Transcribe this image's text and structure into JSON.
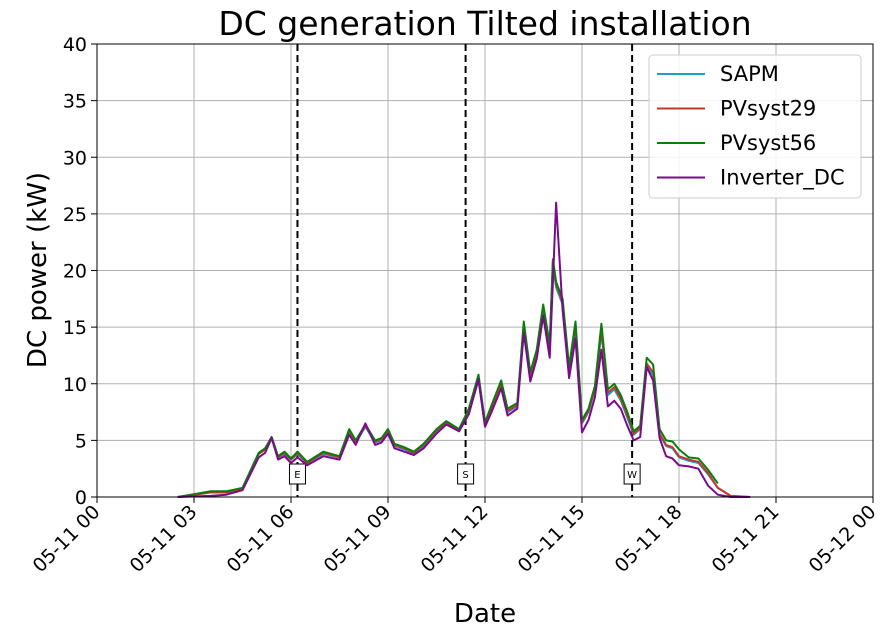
{
  "chart_data": {
    "type": "line",
    "title": "DC generation Tilted installation",
    "xlabel": "Date",
    "ylabel": "DC power (kW)",
    "xlim": [
      "05-11 00",
      "05-12 00"
    ],
    "ylim": [
      0,
      40
    ],
    "x_unit": "hour of day 2024-05-11",
    "xticks": [
      {
        "h": 0,
        "label": "05-11 00"
      },
      {
        "h": 3,
        "label": "05-11 03"
      },
      {
        "h": 6,
        "label": "05-11 06"
      },
      {
        "h": 9,
        "label": "05-11 09"
      },
      {
        "h": 12,
        "label": "05-11 12"
      },
      {
        "h": 15,
        "label": "05-11 15"
      },
      {
        "h": 18,
        "label": "05-11 18"
      },
      {
        "h": 21,
        "label": "05-11 21"
      },
      {
        "h": 24,
        "label": "05-12 00"
      }
    ],
    "yticks": [
      0,
      5,
      10,
      15,
      20,
      25,
      30,
      35,
      40
    ],
    "grid": true,
    "legend_position": "top-right",
    "vlines": [
      {
        "x": 6.2,
        "label": "E"
      },
      {
        "x": 11.4,
        "label": "S"
      },
      {
        "x": 16.55,
        "label": "W"
      }
    ],
    "series": [
      {
        "name": "SAPM",
        "color": "#1f9bd0",
        "x": [
          2.5,
          3.5,
          4.0,
          4.5,
          5.0,
          5.2,
          5.4,
          5.6,
          5.8,
          6.0,
          6.2,
          6.5,
          7.0,
          7.5,
          7.8,
          8.0,
          8.3,
          8.6,
          8.8,
          9.0,
          9.2,
          9.5,
          9.8,
          10.1,
          10.5,
          10.8,
          11.2,
          11.5,
          11.8,
          12.0,
          12.2,
          12.5,
          12.7,
          13.0,
          13.2,
          13.4,
          13.6,
          13.8,
          14.0,
          14.1,
          14.2,
          14.4,
          14.6,
          14.8,
          15.0,
          15.2,
          15.4,
          15.6,
          15.8,
          16.0,
          16.2,
          16.4,
          16.6,
          16.8,
          17.0,
          17.2,
          17.4,
          17.6,
          17.8,
          18.0,
          18.3,
          18.6,
          18.9,
          19.2,
          19.6,
          20.2
        ],
        "y": [
          0.0,
          0.4,
          0.4,
          0.7,
          3.8,
          4.2,
          5.2,
          3.5,
          3.8,
          3.3,
          3.8,
          3.0,
          3.8,
          3.5,
          5.8,
          4.8,
          6.2,
          4.8,
          5.0,
          5.8,
          4.5,
          4.2,
          3.8,
          4.5,
          5.8,
          6.5,
          5.8,
          7.5,
          10.3,
          6.3,
          7.8,
          9.8,
          7.5,
          8.0,
          15.0,
          10.5,
          12.5,
          16.5,
          13.0,
          20.5,
          18.5,
          17.0,
          11.0,
          15.0,
          6.5,
          7.5,
          9.5,
          14.5,
          9.0,
          9.5,
          8.5,
          7.0,
          5.5,
          6.0,
          11.5,
          10.8,
          5.5,
          4.5,
          4.3,
          3.5,
          3.2,
          3.0,
          2.0,
          0.8,
          0.1,
          0.0
        ]
      },
      {
        "name": "PVsyst29",
        "color": "#c0392b",
        "x": [
          2.5,
          3.5,
          4.0,
          4.5,
          5.0,
          5.2,
          5.4,
          5.6,
          5.8,
          6.0,
          6.2,
          6.5,
          7.0,
          7.5,
          7.8,
          8.0,
          8.3,
          8.6,
          8.8,
          9.0,
          9.2,
          9.5,
          9.8,
          10.1,
          10.5,
          10.8,
          11.2,
          11.5,
          11.8,
          12.0,
          12.2,
          12.5,
          12.7,
          13.0,
          13.2,
          13.4,
          13.6,
          13.8,
          14.0,
          14.1,
          14.2,
          14.4,
          14.6,
          14.8,
          15.0,
          15.2,
          15.4,
          15.6,
          15.8,
          16.0,
          16.2,
          16.4,
          16.6,
          16.8,
          17.0,
          17.2,
          17.4,
          17.6,
          17.8,
          18.0,
          18.3,
          18.6,
          18.9,
          19.2,
          19.6,
          20.2
        ],
        "y": [
          0.0,
          0.4,
          0.4,
          0.7,
          3.8,
          4.2,
          5.3,
          3.5,
          3.9,
          3.3,
          3.9,
          3.0,
          3.9,
          3.5,
          5.9,
          4.9,
          6.3,
          4.9,
          5.1,
          5.9,
          4.6,
          4.3,
          3.9,
          4.6,
          5.9,
          6.6,
          5.9,
          7.6,
          10.5,
          6.4,
          7.9,
          10.0,
          7.6,
          8.1,
          15.2,
          10.7,
          12.7,
          16.8,
          13.2,
          20.8,
          18.8,
          17.2,
          11.2,
          15.2,
          6.6,
          7.6,
          9.6,
          14.8,
          9.2,
          9.7,
          8.7,
          7.2,
          5.6,
          6.1,
          11.8,
          11.0,
          5.6,
          4.6,
          4.4,
          3.6,
          3.3,
          3.1,
          2.1,
          0.8,
          0.1,
          0.0
        ]
      },
      {
        "name": "PVsyst56",
        "color": "#0a7d0a",
        "x": [
          2.5,
          3.5,
          4.0,
          4.5,
          5.0,
          5.2,
          5.4,
          5.6,
          5.8,
          6.0,
          6.2,
          6.5,
          7.0,
          7.5,
          7.8,
          8.0,
          8.3,
          8.6,
          8.8,
          9.0,
          9.2,
          9.5,
          9.8,
          10.1,
          10.5,
          10.8,
          11.2,
          11.5,
          11.8,
          12.0,
          12.2,
          12.5,
          12.7,
          13.0,
          13.2,
          13.4,
          13.6,
          13.8,
          14.0,
          14.1,
          14.2,
          14.4,
          14.6,
          14.8,
          15.0,
          15.2,
          15.4,
          15.6,
          15.8,
          16.0,
          16.2,
          16.4,
          16.6,
          16.8,
          17.0,
          17.2,
          17.4,
          17.6,
          17.8,
          18.0,
          18.3,
          18.6,
          18.9,
          19.2,
          19.6,
          20.2
        ],
        "y": [
          0.0,
          0.5,
          0.5,
          0.8,
          3.9,
          4.3,
          5.3,
          3.6,
          4.0,
          3.4,
          4.0,
          3.1,
          4.0,
          3.6,
          6.0,
          5.0,
          6.4,
          5.0,
          5.2,
          6.0,
          4.7,
          4.4,
          4.0,
          4.7,
          6.0,
          6.7,
          6.0,
          7.8,
          10.8,
          6.6,
          8.1,
          10.3,
          7.8,
          8.3,
          15.5,
          11.0,
          13.0,
          17.0,
          13.5,
          21.0,
          19.0,
          17.5,
          11.5,
          15.5,
          6.8,
          7.8,
          9.8,
          15.3,
          9.5,
          10.0,
          9.0,
          7.5,
          5.8,
          6.3,
          12.3,
          11.7,
          6.0,
          5.0,
          4.9,
          4.2,
          3.5,
          3.4,
          2.4,
          1.2,
          null,
          null
        ]
      },
      {
        "name": "Inverter_DC",
        "color": "#7b0a8c",
        "x": [
          2.5,
          3.5,
          4.0,
          4.5,
          5.0,
          5.2,
          5.4,
          5.6,
          5.8,
          6.0,
          6.2,
          6.5,
          7.0,
          7.5,
          7.8,
          8.0,
          8.3,
          8.6,
          8.8,
          9.0,
          9.2,
          9.5,
          9.8,
          10.1,
          10.5,
          10.8,
          11.2,
          11.5,
          11.8,
          12.0,
          12.2,
          12.5,
          12.7,
          13.0,
          13.2,
          13.4,
          13.6,
          13.8,
          14.0,
          14.1,
          14.2,
          14.4,
          14.6,
          14.8,
          15.0,
          15.2,
          15.4,
          15.6,
          15.8,
          16.0,
          16.2,
          16.4,
          16.6,
          16.8,
          17.0,
          17.2,
          17.4,
          17.6,
          17.8,
          18.0,
          18.3,
          18.6,
          18.9,
          19.2,
          19.6,
          20.2
        ],
        "y": [
          0.0,
          0.1,
          0.2,
          0.6,
          3.5,
          3.9,
          5.2,
          3.3,
          3.6,
          3.0,
          3.5,
          2.8,
          3.6,
          3.3,
          5.5,
          4.6,
          6.5,
          4.6,
          4.8,
          5.6,
          4.3,
          4.0,
          3.7,
          4.3,
          5.6,
          6.4,
          5.8,
          7.3,
          10.4,
          6.2,
          7.5,
          9.6,
          7.2,
          7.8,
          14.5,
          10.2,
          12.2,
          16.0,
          12.3,
          19.0,
          26.0,
          16.5,
          10.5,
          14.0,
          5.7,
          6.8,
          8.8,
          13.0,
          8.0,
          8.5,
          7.8,
          6.3,
          5.0,
          5.3,
          11.5,
          10.3,
          5.2,
          3.6,
          3.4,
          2.8,
          2.7,
          2.5,
          1.0,
          0.2,
          0.0,
          0.0
        ]
      }
    ]
  }
}
